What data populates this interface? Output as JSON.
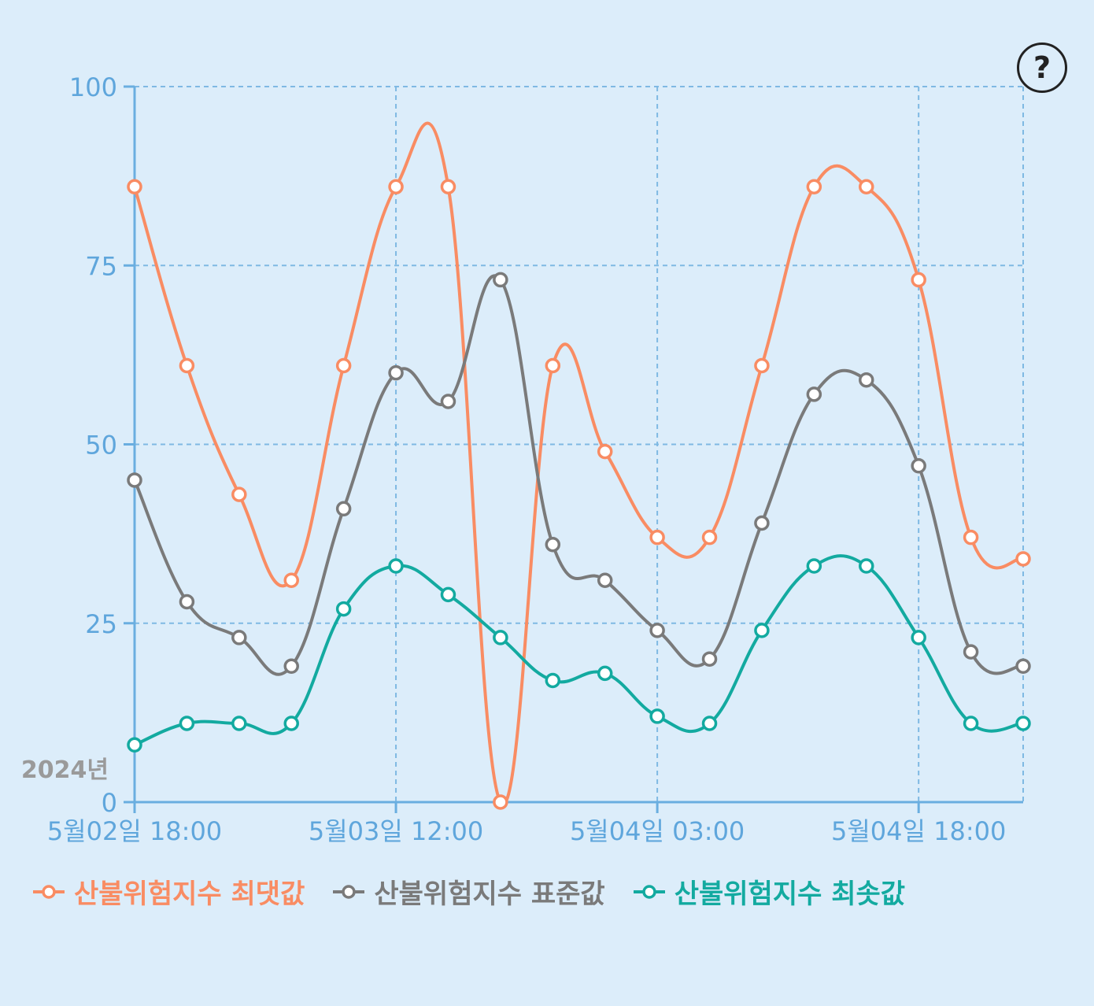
{
  "help_icon": "question-circle-icon",
  "help_label": "?",
  "chart_data": {
    "type": "line",
    "title": "",
    "xlabel": "",
    "ylabel": "",
    "year_label": "2024년",
    "ylim": [
      0,
      100
    ],
    "y_ticks": [
      "0",
      "25",
      "50",
      "75",
      "100"
    ],
    "x_tick_labels": [
      "5월02일 18:00",
      "5월03일 12:00",
      "5월04일 03:00",
      "5월04일 18:00"
    ],
    "x": [
      "2024-05-02 18:00",
      "2024-05-02 21:00",
      "2024-05-03 00:00",
      "2024-05-03 03:00",
      "2024-05-03 06:00",
      "2024-05-03 09:00",
      "2024-05-03 12:00",
      "2024-05-03 15:00",
      "2024-05-03 18:00",
      "2024-05-03 21:00",
      "2024-05-04 00:00",
      "2024-05-04 03:00",
      "2024-05-04 06:00",
      "2024-05-04 09:00",
      "2024-05-04 12:00",
      "2024-05-04 15:00",
      "2024-05-04 18:00",
      "2024-05-04 21:00"
    ],
    "grid": true,
    "legend_position": "bottom-left",
    "series": [
      {
        "name": "산불위험지수 최댓값",
        "color": "#f98c63",
        "values": [
          86,
          61,
          43,
          31,
          61,
          86,
          86,
          0,
          61,
          49,
          37,
          37,
          61,
          86,
          86,
          73,
          37,
          34
        ]
      },
      {
        "name": "산불위험지수 표준값",
        "color": "#7a7a7a",
        "values": [
          45,
          28,
          23,
          19,
          41,
          60,
          56,
          73,
          36,
          31,
          24,
          20,
          39,
          57,
          59,
          47,
          21,
          19
        ]
      },
      {
        "name": "산불위험지수 최솟값",
        "color": "#13aaa0",
        "values": [
          8,
          11,
          11,
          11,
          27,
          33,
          29,
          23,
          17,
          18,
          12,
          11,
          24,
          33,
          33,
          23,
          11,
          11
        ]
      }
    ]
  }
}
